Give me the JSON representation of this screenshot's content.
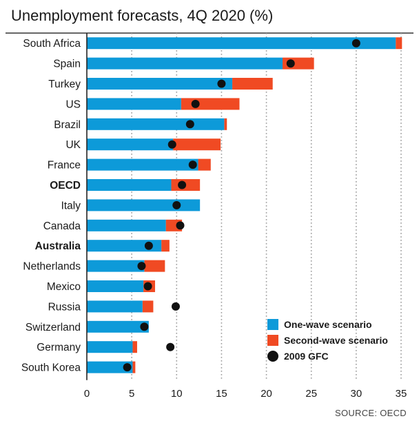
{
  "chart_data": {
    "type": "bar",
    "title": "Unemployment forecasts, 4Q 2020 (%)",
    "source": "SOURCE: OECD",
    "xlim": [
      0,
      35
    ],
    "x_ticks": [
      0,
      5,
      10,
      15,
      20,
      25,
      30,
      35
    ],
    "grid": "vertical dotted",
    "legend_position": "bottom-right",
    "categories": [
      "South Africa",
      "Spain",
      "Turkey",
      "US",
      "Brazil",
      "UK",
      "France",
      "OECD",
      "Italy",
      "Canada",
      "Australia",
      "Netherlands",
      "Mexico",
      "Russia",
      "Switzerland",
      "Germany",
      "South Korea"
    ],
    "bold_categories": [
      "OECD",
      "Australia"
    ],
    "series": [
      {
        "name": "One-wave scenario",
        "color": "#0d9ad9",
        "values": [
          34.4,
          21.8,
          16.2,
          10.5,
          15.3,
          9.6,
          12.4,
          9.4,
          12.6,
          8.8,
          8.3,
          6.4,
          6.3,
          6.2,
          6.9,
          5.1,
          5.1
        ]
      },
      {
        "name": "Second-wave scenario",
        "color": "#f04a23",
        "values": [
          35.1,
          25.3,
          20.7,
          17.0,
          15.6,
          14.9,
          13.8,
          12.6,
          12.6,
          10.6,
          9.2,
          8.7,
          7.6,
          7.4,
          6.9,
          5.6,
          5.4
        ]
      },
      {
        "name": "2009 GFC",
        "color": "#111111",
        "values": [
          30.0,
          22.7,
          15.0,
          12.1,
          11.5,
          9.5,
          11.8,
          10.6,
          10.0,
          10.4,
          6.9,
          6.1,
          6.8,
          9.9,
          6.4,
          9.3,
          4.5
        ]
      }
    ]
  }
}
